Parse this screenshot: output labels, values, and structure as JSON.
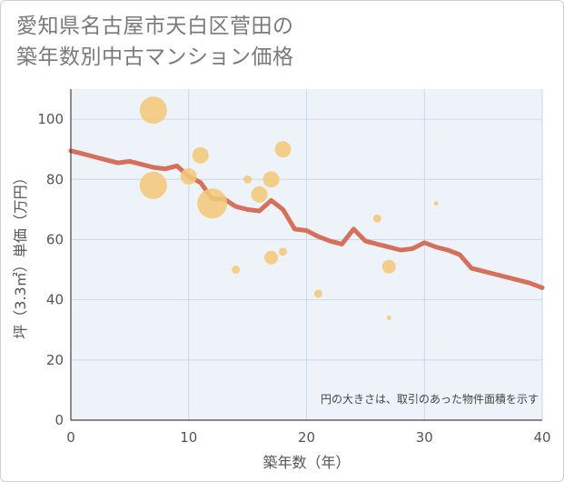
{
  "title_line1": "愛知県名古屋市天白区菅田の",
  "title_line2": "築年数別中古マンション価格",
  "colors": {
    "bubble": "#f3c87a",
    "line": "#d4705b",
    "grid": "#c9d9ea",
    "plot_bg": "#eef3f9"
  },
  "chart_data": {
    "type": "scatter",
    "xlabel": "築年数（年）",
    "ylabel": "坪（3.3㎡）単価（万円）",
    "xlim": [
      0,
      40
    ],
    "ylim": [
      0,
      110
    ],
    "x_ticks": [
      0,
      10,
      20,
      30,
      40
    ],
    "y_ticks": [
      0,
      20,
      40,
      60,
      80,
      100
    ],
    "annotation": "円の大きさは、取引のあった物件面積を示す",
    "points": [
      {
        "x": 7,
        "y": 103,
        "size": 5
      },
      {
        "x": 7,
        "y": 78,
        "size": 5
      },
      {
        "x": 10,
        "y": 81,
        "size": 3
      },
      {
        "x": 11,
        "y": 88,
        "size": 3
      },
      {
        "x": 12,
        "y": 72,
        "size": 5.5
      },
      {
        "x": 14,
        "y": 50,
        "size": 1.5
      },
      {
        "x": 15,
        "y": 80,
        "size": 1.5
      },
      {
        "x": 16,
        "y": 75,
        "size": 3
      },
      {
        "x": 17,
        "y": 80,
        "size": 3
      },
      {
        "x": 17,
        "y": 54,
        "size": 2.5
      },
      {
        "x": 18,
        "y": 90,
        "size": 3
      },
      {
        "x": 18,
        "y": 56,
        "size": 1.5
      },
      {
        "x": 21,
        "y": 42,
        "size": 1.5
      },
      {
        "x": 26,
        "y": 67,
        "size": 1.5
      },
      {
        "x": 27,
        "y": 51,
        "size": 2.5
      },
      {
        "x": 27,
        "y": 34,
        "size": 0.5
      },
      {
        "x": 31,
        "y": 72,
        "size": 0.5
      }
    ],
    "trend": {
      "x": [
        0,
        1,
        2,
        3,
        4,
        5,
        6,
        7,
        8,
        9,
        10,
        11,
        12,
        13,
        14,
        15,
        16,
        17,
        18,
        19,
        20,
        21,
        22,
        23,
        24,
        25,
        26,
        27,
        28,
        29,
        30,
        31,
        32,
        33,
        34,
        35,
        36,
        37,
        38,
        39,
        40
      ],
      "y": [
        89.5,
        88.5,
        87.5,
        86.5,
        85.5,
        86,
        85,
        84,
        83.5,
        84.5,
        81,
        79,
        73.5,
        73.5,
        71,
        70,
        69.5,
        73,
        70,
        63.5,
        63,
        61,
        59.5,
        58.5,
        63.5,
        59.5,
        58.5,
        57.5,
        56.5,
        57,
        59,
        57.5,
        56.5,
        55,
        50.5,
        49.5,
        48.5,
        47.5,
        46.5,
        45.5,
        44
      ]
    }
  }
}
